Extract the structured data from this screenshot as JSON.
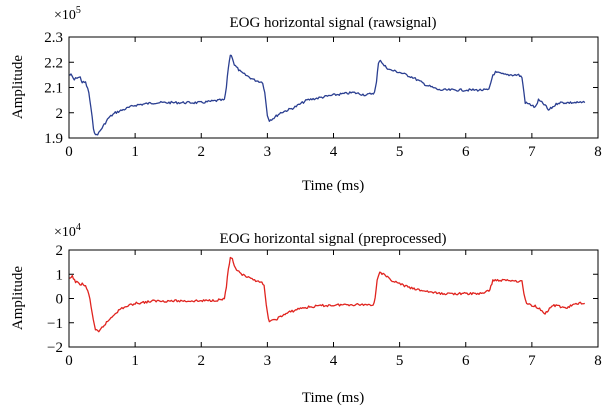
{
  "colors": {
    "top": "#2b3f91",
    "bottom": "#e0241f",
    "axes": "#000000"
  },
  "chart_data": [
    {
      "type": "line",
      "title": "EOG horizontal signal (rawsignal)",
      "xlabel": "Time (ms)",
      "ylabel": "Amplitude",
      "exponent": {
        "base": "×10",
        "power": "5"
      },
      "xlim": [
        0,
        8
      ],
      "ylim": [
        1.9,
        2.3
      ],
      "xticks": [
        "0",
        "1",
        "2",
        "3",
        "4",
        "5",
        "6",
        "7",
        "8"
      ],
      "yticks": [
        "1.9",
        "2",
        "2.1",
        "2.2",
        "2.3"
      ],
      "grid": false,
      "series": [
        {
          "points": [
            [
              0,
              2.15
            ],
            [
              0.03,
              2.15
            ],
            [
              0.08,
              2.13
            ],
            [
              0.12,
              2.14
            ],
            [
              0.17,
              2.14
            ],
            [
              0.2,
              2.12
            ],
            [
              0.25,
              2.12
            ],
            [
              0.3,
              2.08
            ],
            [
              0.33,
              2.02
            ],
            [
              0.37,
              1.94
            ],
            [
              0.4,
              1.91
            ],
            [
              0.45,
              1.92
            ],
            [
              0.5,
              1.94
            ],
            [
              0.55,
              1.96
            ],
            [
              0.6,
              1.98
            ],
            [
              0.7,
              2.0
            ],
            [
              0.8,
              2.01
            ],
            [
              1.0,
              2.03
            ],
            [
              1.3,
              2.04
            ],
            [
              1.6,
              2.04
            ],
            [
              2.0,
              2.04
            ],
            [
              2.3,
              2.05
            ],
            [
              2.35,
              2.05
            ],
            [
              2.38,
              2.1
            ],
            [
              2.41,
              2.18
            ],
            [
              2.44,
              2.23
            ],
            [
              2.47,
              2.22
            ],
            [
              2.5,
              2.19
            ],
            [
              2.6,
              2.16
            ],
            [
              2.8,
              2.13
            ],
            [
              2.93,
              2.12
            ],
            [
              2.96,
              2.08
            ],
            [
              3.0,
              1.99
            ],
            [
              3.03,
              1.97
            ],
            [
              3.1,
              1.98
            ],
            [
              3.2,
              2.0
            ],
            [
              3.4,
              2.02
            ],
            [
              3.6,
              2.05
            ],
            [
              3.8,
              2.06
            ],
            [
              4.0,
              2.07
            ],
            [
              4.3,
              2.08
            ],
            [
              4.5,
              2.07
            ],
            [
              4.62,
              2.08
            ],
            [
              4.65,
              2.12
            ],
            [
              4.68,
              2.2
            ],
            [
              4.71,
              2.21
            ],
            [
              4.75,
              2.19
            ],
            [
              4.85,
              2.17
            ],
            [
              5.0,
              2.16
            ],
            [
              5.2,
              2.14
            ],
            [
              5.4,
              2.11
            ],
            [
              5.6,
              2.09
            ],
            [
              5.8,
              2.09
            ],
            [
              6.0,
              2.09
            ],
            [
              6.2,
              2.09
            ],
            [
              6.35,
              2.09
            ],
            [
              6.38,
              2.12
            ],
            [
              6.41,
              2.15
            ],
            [
              6.45,
              2.16
            ],
            [
              6.6,
              2.15
            ],
            [
              6.8,
              2.15
            ],
            [
              6.85,
              2.14
            ],
            [
              6.88,
              2.08
            ],
            [
              6.9,
              2.04
            ],
            [
              7.0,
              2.03
            ],
            [
              7.05,
              2.02
            ],
            [
              7.1,
              2.05
            ],
            [
              7.15,
              2.04
            ],
            [
              7.2,
              2.03
            ],
            [
              7.25,
              2.01
            ],
            [
              7.3,
              2.02
            ],
            [
              7.4,
              2.04
            ],
            [
              7.5,
              2.04
            ],
            [
              7.6,
              2.04
            ],
            [
              7.7,
              2.04
            ],
            [
              7.8,
              2.04
            ]
          ]
        }
      ]
    },
    {
      "type": "line",
      "title": "EOG horizontal signal (preprocessed)",
      "xlabel": "Time (ms)",
      "ylabel": "Amplitude",
      "exponent": {
        "base": "×10",
        "power": "4"
      },
      "xlim": [
        0,
        8
      ],
      "ylim": [
        -2,
        2
      ],
      "xticks": [
        "0",
        "1",
        "2",
        "3",
        "4",
        "5",
        "6",
        "7",
        "8"
      ],
      "yticks": [
        "−2",
        "−1",
        "0",
        "1",
        "2"
      ],
      "grid": false,
      "series": [
        {
          "points": [
            [
              0,
              0.8
            ],
            [
              0.05,
              0.9
            ],
            [
              0.1,
              0.7
            ],
            [
              0.15,
              0.6
            ],
            [
              0.2,
              0.6
            ],
            [
              0.25,
              0.5
            ],
            [
              0.3,
              0.2
            ],
            [
              0.35,
              -0.6
            ],
            [
              0.4,
              -1.3
            ],
            [
              0.45,
              -1.4
            ],
            [
              0.5,
              -1.2
            ],
            [
              0.6,
              -0.9
            ],
            [
              0.7,
              -0.6
            ],
            [
              0.8,
              -0.4
            ],
            [
              1.0,
              -0.2
            ],
            [
              1.3,
              -0.1
            ],
            [
              1.6,
              -0.1
            ],
            [
              2.0,
              -0.1
            ],
            [
              2.3,
              -0.05
            ],
            [
              2.35,
              0.0
            ],
            [
              2.38,
              0.5
            ],
            [
              2.41,
              1.2
            ],
            [
              2.44,
              1.65
            ],
            [
              2.47,
              1.6
            ],
            [
              2.5,
              1.3
            ],
            [
              2.6,
              1.0
            ],
            [
              2.75,
              0.8
            ],
            [
              2.9,
              0.7
            ],
            [
              2.95,
              0.5
            ],
            [
              3.0,
              -0.6
            ],
            [
              3.03,
              -0.95
            ],
            [
              3.1,
              -0.9
            ],
            [
              3.2,
              -0.75
            ],
            [
              3.3,
              -0.6
            ],
            [
              3.5,
              -0.4
            ],
            [
              3.8,
              -0.3
            ],
            [
              4.2,
              -0.25
            ],
            [
              4.6,
              -0.25
            ],
            [
              4.63,
              0.0
            ],
            [
              4.66,
              0.8
            ],
            [
              4.7,
              1.1
            ],
            [
              4.75,
              1.0
            ],
            [
              4.85,
              0.8
            ],
            [
              5.0,
              0.6
            ],
            [
              5.2,
              0.4
            ],
            [
              5.4,
              0.3
            ],
            [
              5.6,
              0.2
            ],
            [
              5.8,
              0.2
            ],
            [
              6.0,
              0.2
            ],
            [
              6.2,
              0.2
            ],
            [
              6.35,
              0.3
            ],
            [
              6.38,
              0.5
            ],
            [
              6.41,
              0.75
            ],
            [
              6.5,
              0.75
            ],
            [
              6.7,
              0.75
            ],
            [
              6.85,
              0.7
            ],
            [
              6.88,
              0.2
            ],
            [
              6.92,
              -0.2
            ],
            [
              7.0,
              -0.3
            ],
            [
              7.05,
              -0.3
            ],
            [
              7.1,
              -0.4
            ],
            [
              7.15,
              -0.5
            ],
            [
              7.2,
              -0.6
            ],
            [
              7.25,
              -0.5
            ],
            [
              7.3,
              -0.3
            ],
            [
              7.4,
              -0.3
            ],
            [
              7.5,
              -0.4
            ],
            [
              7.6,
              -0.3
            ],
            [
              7.7,
              -0.2
            ],
            [
              7.8,
              -0.2
            ]
          ]
        }
      ]
    }
  ]
}
